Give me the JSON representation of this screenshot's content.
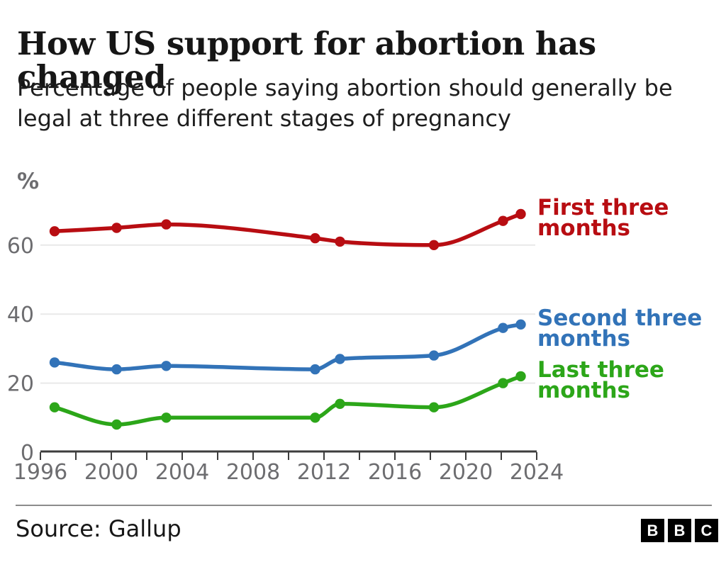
{
  "header": {
    "title": "How US support for abortion has changed",
    "subtitle_line1": "Percentage of people saying abortion should generally be",
    "subtitle_line2": "legal at three different stages of pregnancy"
  },
  "chart_data": {
    "type": "line",
    "title": "How US support for abortion has changed",
    "subtitle": "Percentage of people saying abortion should generally be legal at three different stages of pregnancy",
    "unit": "%",
    "xlabel": "",
    "ylabel": "%",
    "x": [
      1996.8,
      2000.3,
      2003.1,
      2011.5,
      2012.9,
      2018.2,
      2022.1,
      2023.1
    ],
    "series": [
      {
        "name": "First three months",
        "label_lines": [
          "First three",
          "months"
        ],
        "color": "#b80d12",
        "values": [
          64,
          65,
          66,
          62,
          61,
          60,
          67,
          69
        ]
      },
      {
        "name": "Second three months",
        "label_lines": [
          "Second three",
          "months"
        ],
        "color": "#3273b8",
        "values": [
          26,
          24,
          25,
          24,
          27,
          28,
          36,
          37
        ]
      },
      {
        "name": "Last three months",
        "label_lines": [
          "Last three",
          "months"
        ],
        "color": "#2ca619",
        "values": [
          13,
          8,
          10,
          10,
          14,
          13,
          20,
          22
        ]
      }
    ],
    "y_ticks": [
      0,
      20,
      40,
      60
    ],
    "x_tick_labels": [
      "1996",
      "2000",
      "2004",
      "2008",
      "2012",
      "2016",
      "2020",
      "2024"
    ],
    "x_minor_tick_step": 2,
    "xlim": [
      1996,
      2024
    ],
    "ylim": [
      0,
      75
    ],
    "grid": "horizontal",
    "legend_position": "right-of-line-end",
    "grid_color": "#e9e9e9",
    "axis_color": "#3d3d3d",
    "tick_label_color": "#6d6d70"
  },
  "footer": {
    "source": "Source: Gallup",
    "logo_letters": [
      "B",
      "B",
      "C"
    ]
  }
}
